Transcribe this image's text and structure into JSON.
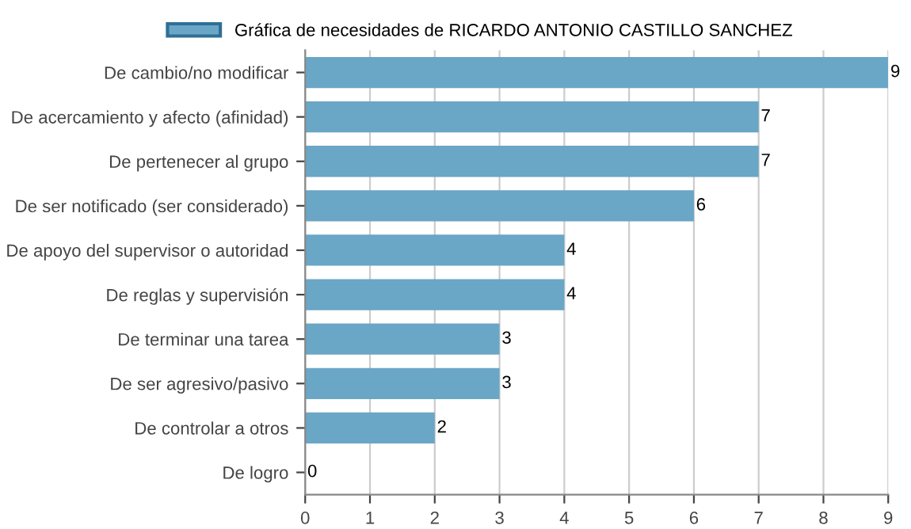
{
  "chart_data": {
    "type": "bar",
    "orientation": "horizontal",
    "categories": [
      "De cambio/no modificar",
      "De acercamiento y afecto (afinidad)",
      "De pertenecer al grupo",
      "De ser notificado (ser considerado)",
      "De apoyo del supervisor o autoridad",
      "De reglas y supervisión",
      "De terminar una tarea",
      "De ser agresivo/pasivo",
      "De controlar a otros",
      "De logro"
    ],
    "series": [
      {
        "name": "Gráfica de necesidades de RICARDO ANTONIO CASTILLO SANCHEZ",
        "color": "#6aa6c6",
        "values": [
          9,
          7,
          7,
          6,
          4,
          4,
          3,
          3,
          2,
          0
        ]
      }
    ],
    "xlim": [
      0,
      9
    ],
    "xticks": [
      0,
      1,
      2,
      3,
      4,
      5,
      6,
      7,
      8,
      9
    ],
    "grid": "x",
    "legend": "top",
    "data_labels": true
  }
}
